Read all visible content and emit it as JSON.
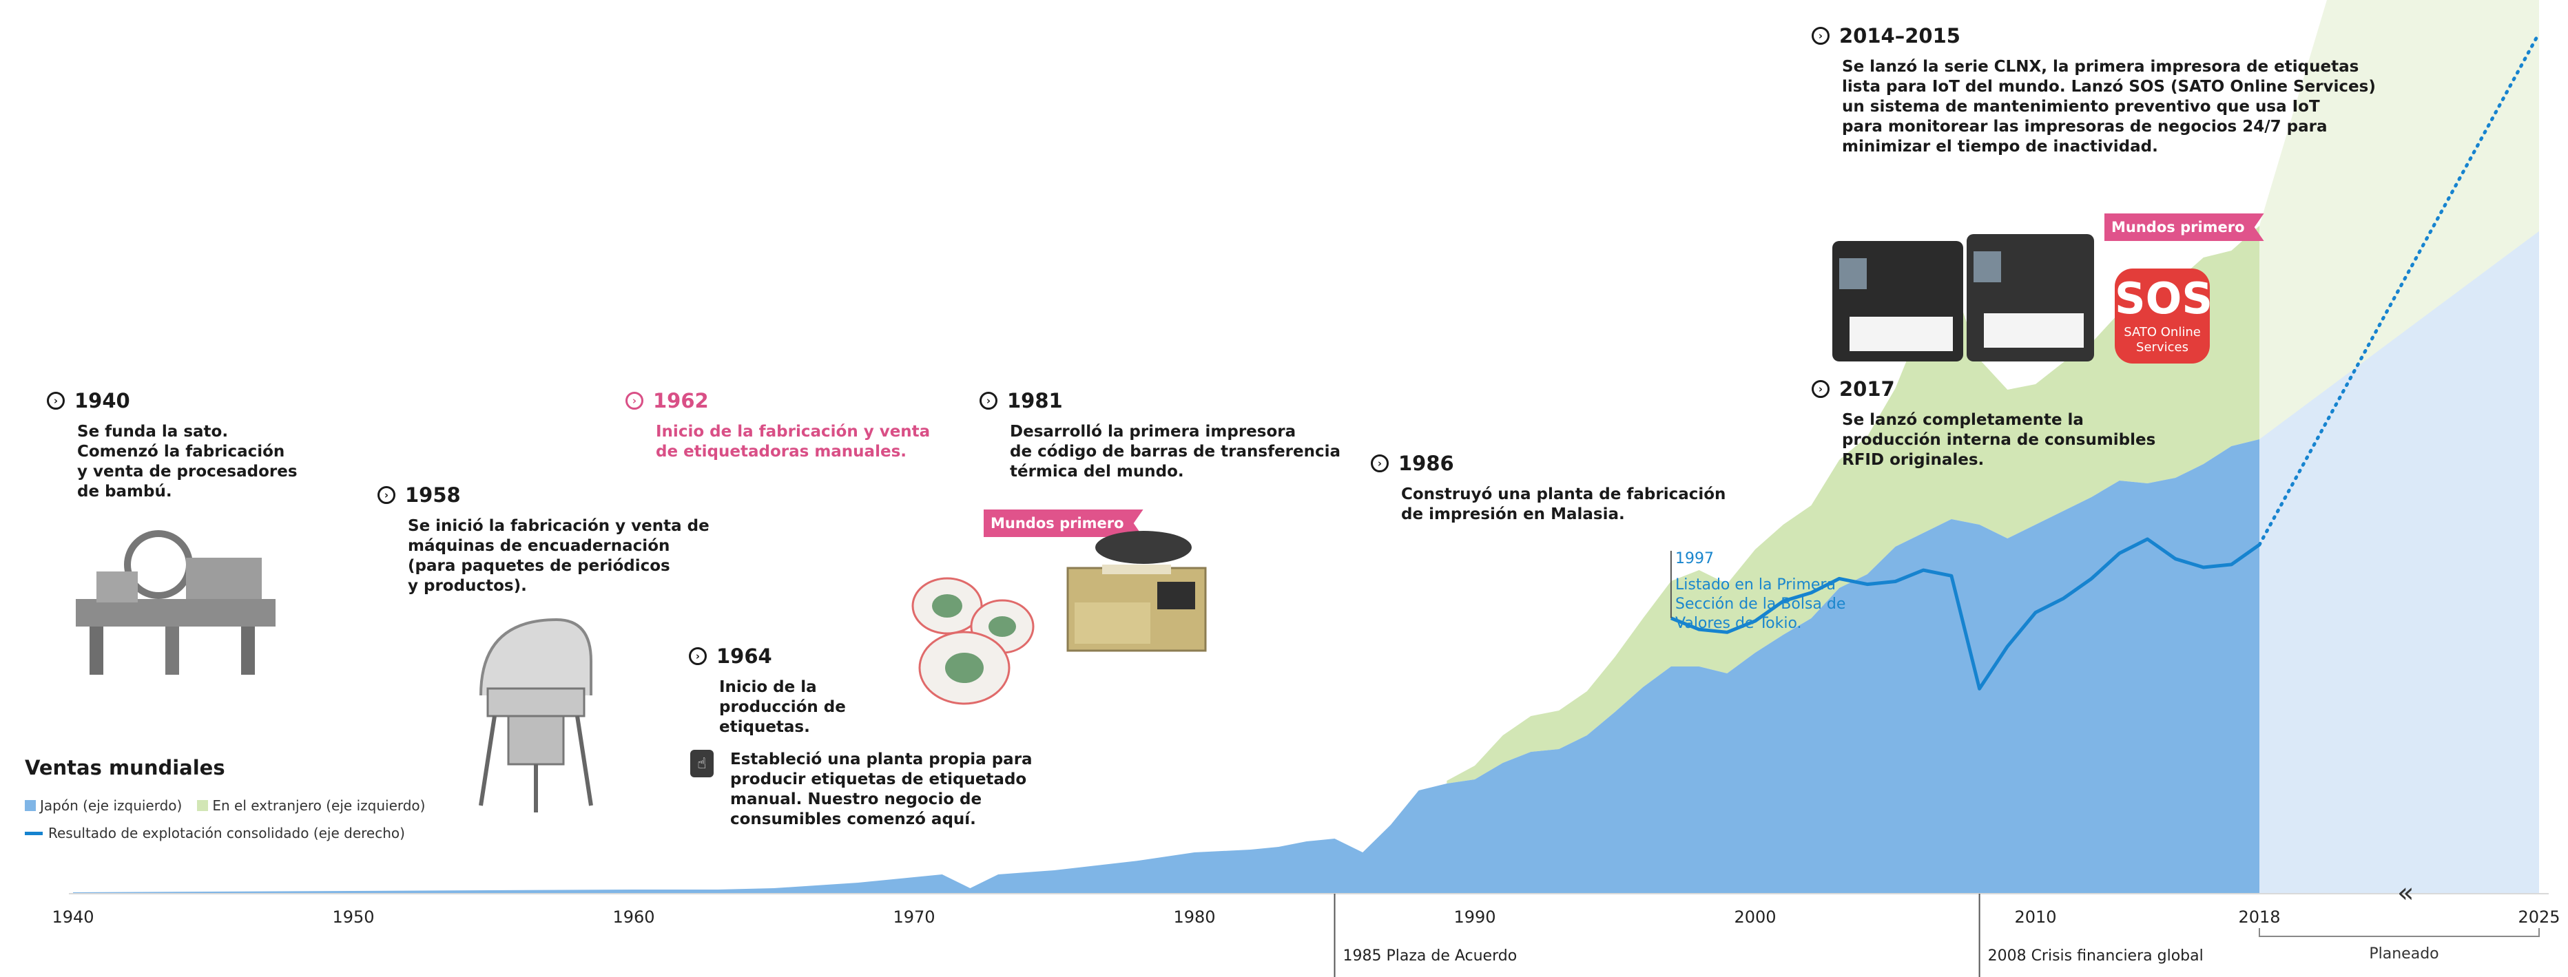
{
  "chart_data": {
    "type": "area",
    "title": "Ventas mundiales",
    "x_ticks": [
      1940,
      1950,
      1960,
      1970,
      1980,
      1990,
      2000,
      2010,
      2018,
      2025
    ],
    "xlim": [
      1940,
      2025
    ],
    "axis_break_note": "«",
    "series": [
      {
        "name": "Japón (eje izquierdo)",
        "color": "#7fb5e6",
        "x": [
          1940,
          1950,
          1960,
          1963,
          1965,
          1968,
          1970,
          1971,
          1972,
          1973,
          1975,
          1978,
          1980,
          1982,
          1983,
          1984,
          1985,
          1986,
          1987,
          1988,
          1989,
          1990,
          1991,
          1992,
          1993,
          1994,
          1995,
          1996,
          1997,
          1998,
          1999,
          2000,
          2001,
          2002,
          2003,
          2004,
          2005,
          2006,
          2007,
          2008,
          2009,
          2010,
          2011,
          2012,
          2013,
          2014,
          2015,
          2016,
          2017,
          2018
        ],
        "values": [
          1,
          2,
          3,
          3,
          4,
          8,
          12,
          14,
          4,
          14,
          17,
          24,
          30,
          32,
          34,
          38,
          40,
          30,
          50,
          75,
          80,
          83,
          95,
          103,
          105,
          115,
          132,
          150,
          165,
          165,
          160,
          175,
          188,
          200,
          222,
          232,
          252,
          262,
          272,
          268,
          258,
          268,
          278,
          288,
          300,
          298,
          302,
          312,
          325,
          330
        ]
      },
      {
        "name": "En el extranjero (eje izquierdo)",
        "color": "#d2e6b5",
        "x": [
          1989,
          1990,
          1991,
          1992,
          1993,
          1994,
          1995,
          1996,
          1997,
          1998,
          1999,
          2000,
          2001,
          2002,
          2003,
          2004,
          2005,
          2006,
          2007,
          2008,
          2009,
          2010,
          2011,
          2012,
          2013,
          2014,
          2015,
          2016,
          2017,
          2018
        ],
        "values": [
          2,
          10,
          20,
          26,
          28,
          32,
          40,
          50,
          62,
          70,
          65,
          75,
          80,
          82,
          93,
          100,
          115,
          155,
          175,
          120,
          108,
          102,
          108,
          112,
          122,
          135,
          142,
          150,
          142,
          155
        ]
      },
      {
        "name": "Resultado de explotación consolidado (eje derecho)",
        "color": "#1683cf",
        "x": [
          1997,
          1998,
          1999,
          2000,
          2001,
          2002,
          2003,
          2004,
          2005,
          2006,
          2007,
          2008,
          2009,
          2010,
          2011,
          2012,
          2013,
          2014,
          2015,
          2016,
          2017,
          2018
        ],
        "values": [
          22,
          18,
          17,
          21,
          28,
          31,
          36,
          34,
          35,
          39,
          37,
          -3,
          12,
          24,
          29,
          36,
          45,
          50,
          43,
          40,
          41,
          48
        ]
      }
    ],
    "forecast": {
      "label": "Planeado",
      "from_year": 2018,
      "to_year": 2025,
      "japan_end": 1.5,
      "overseas_end": 1.69,
      "operating_end": 1.95
    },
    "annotations": [
      {
        "year": 1985,
        "label": "1985   Plaza de Acuerdo"
      },
      {
        "year": 2008,
        "label": "2008   Crisis financiera global"
      }
    ],
    "annotation_1997": {
      "year": "1997",
      "text": "Listado en la Primera Sección de la Bolsa de Valores de Tokio."
    }
  },
  "events": [
    {
      "year": "1940",
      "text": "Se funda la sato.\nComenzó la fabricación\ny venta de procesadores\nde bambú."
    },
    {
      "year": "1958",
      "text": "Se inició la fabricación y venta de\nmáquinas de encuadernación\n(para paquetes de periódicos\ny productos)."
    },
    {
      "year": "1962",
      "text": "Inicio de la fabricación y venta\nde etiquetadoras manuales."
    },
    {
      "year": "1964",
      "text": "Inicio de la\nproducción de\netiquetas."
    },
    {
      "year": "1981",
      "text": "Desarrolló la primera impresora\nde código de barras de transferencia\ntérmica del mundo."
    },
    {
      "year": "1986",
      "text": "Construyó una planta de fabricación\nde impresión en Malasia."
    },
    {
      "year": "2014–2015",
      "text": "Se lanzó la serie CLNX, la primera impresora de etiquetas\nlista para IoT del mundo. Lanzó SOS (SATO Online Services)\nun sistema de mantenimiento preventivo que usa IoT\npara monitorear las impresoras de negocios 24/7 para\nminimizar el tiempo de inactividad."
    },
    {
      "year": "2017",
      "text": "Se lanzó completamente la\nproducción interna de consumibles\nRFID originales."
    }
  ],
  "note_1964": "Estableció una planta propia para\nproducir etiquetas de etiquetado\nmanual. Nuestro negocio de\nconsumibles comenzó aquí.",
  "ribbon_label": "Mundos primero",
  "sos_logo": {
    "big": "SOS",
    "line1": "SATO Online",
    "line2": "Services"
  },
  "legend": {
    "title": "Ventas mundiales",
    "japan": "Japón (eje izquierdo)",
    "overseas": "En el extranjero (eje izquierdo)",
    "operating": "Resultado de explotación consolidado (eje derecho)"
  }
}
